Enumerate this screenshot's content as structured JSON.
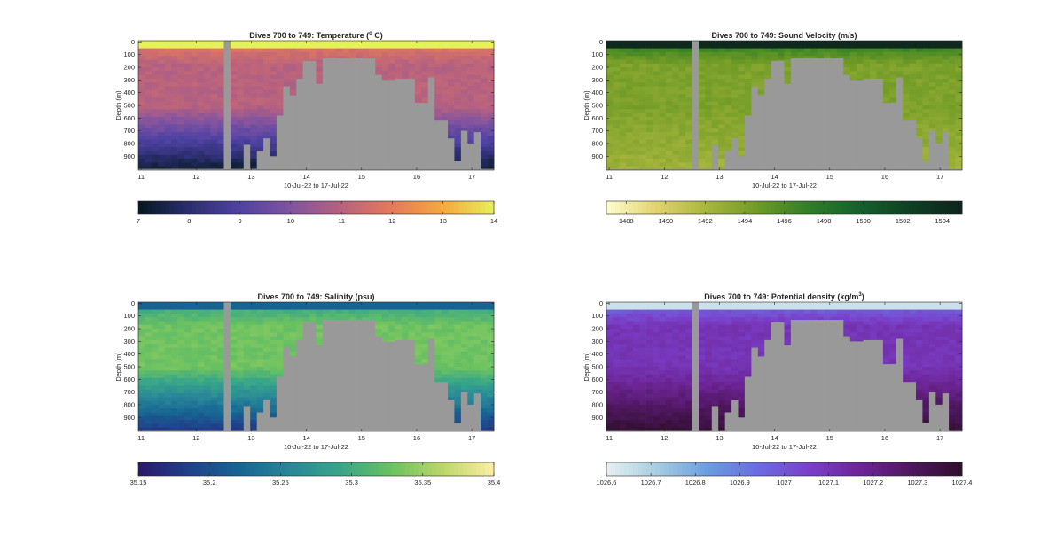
{
  "colors": {
    "gap": "#999999",
    "axis": "#262626",
    "background": "#ffffff"
  },
  "chart_data": [
    {
      "type": "heatmap",
      "title": "Dives 700 to 749: Temperature (",
      "title_sup": "o",
      "title_tail": " C)",
      "xlabel": "10-Jul-22 to 17-Jul-22",
      "ylabel": "Depth (m)",
      "x_ticks": [
        "11",
        "12",
        "13",
        "14",
        "15",
        "16",
        "17"
      ],
      "y_ticks": [
        "0",
        "100",
        "200",
        "300",
        "400",
        "500",
        "600",
        "700",
        "800",
        "900"
      ],
      "colorbar": {
        "ticks": [
          "7",
          "8",
          "9",
          "10",
          "11",
          "12",
          "13",
          "14"
        ],
        "tick_values": [
          7,
          8,
          9,
          10,
          11,
          12,
          13,
          14
        ],
        "range": [
          7,
          14
        ],
        "colormap": "thermal",
        "stops": [
          "#04181e",
          "#2b2e6e",
          "#4f42a3",
          "#8153a0",
          "#b8627e",
          "#e57a5a",
          "#f6a83e",
          "#e6f05a"
        ]
      },
      "field": {
        "surface": 14,
        "deep": 7.3,
        "band": 11
      }
    },
    {
      "type": "heatmap",
      "title": "Dives 700 to 749: Sound Velocity (m/s)",
      "title_sup": "",
      "title_tail": "",
      "xlabel": "10-Jul-22 to 17-Jul-22",
      "ylabel": "Depth (m)",
      "x_ticks": [
        "11",
        "12",
        "13",
        "14",
        "15",
        "16",
        "17"
      ],
      "y_ticks": [
        "0",
        "100",
        "200",
        "300",
        "400",
        "500",
        "600",
        "700",
        "800",
        "900"
      ],
      "colorbar": {
        "ticks": [
          "1488",
          "1490",
          "1492",
          "1494",
          "1496",
          "1498",
          "1500",
          "1502",
          "1504"
        ],
        "tick_values": [
          1488,
          1490,
          1492,
          1494,
          1496,
          1498,
          1500,
          1502,
          1504
        ],
        "range": [
          1487,
          1505
        ],
        "colormap": "speed",
        "stops": [
          "#fffdcd",
          "#e1d26d",
          "#a6b53c",
          "#6d9a25",
          "#2f7d28",
          "#15602c",
          "#0e3f23",
          "#0e241c"
        ]
      },
      "field": {
        "surface": 1504.5,
        "deep": 1492.5,
        "band": 1494
      }
    },
    {
      "type": "heatmap",
      "title": "Dives 700 to 749: Salinity (psu)",
      "title_sup": "",
      "title_tail": "",
      "xlabel": "10-Jul-22 to 17-Jul-22",
      "ylabel": "Depth (m)",
      "x_ticks": [
        "11",
        "12",
        "13",
        "14",
        "15",
        "16",
        "17"
      ],
      "y_ticks": [
        "0",
        "100",
        "200",
        "300",
        "400",
        "500",
        "600",
        "700",
        "800",
        "900"
      ],
      "colorbar": {
        "ticks": [
          "35.15",
          "35.2",
          "35.25",
          "35.3",
          "35.35",
          "35.4"
        ],
        "tick_values": [
          35.15,
          35.2,
          35.25,
          35.3,
          35.35,
          35.4
        ],
        "range": [
          35.15,
          35.4
        ],
        "colormap": "haline",
        "stops": [
          "#29186b",
          "#21418a",
          "#176593",
          "#2a8798",
          "#38a689",
          "#6cc260",
          "#bcd76b",
          "#fdeea2"
        ]
      },
      "field": {
        "surface": 35.22,
        "deep": 35.18,
        "band": 35.33
      }
    },
    {
      "type": "heatmap",
      "title": "Dives 700 to 749: Potential density (kg/m",
      "title_sup": "3",
      "title_tail": ")",
      "xlabel": "10-Jul-22 to 17-Jul-22",
      "ylabel": "Depth (m)",
      "x_ticks": [
        "11",
        "12",
        "13",
        "14",
        "15",
        "16",
        "17"
      ],
      "y_ticks": [
        "0",
        "100",
        "200",
        "300",
        "400",
        "500",
        "600",
        "700",
        "800",
        "900"
      ],
      "colorbar": {
        "ticks": [
          "1026.6",
          "1026.7",
          "1026.8",
          "1026.9",
          "1027",
          "1027.1",
          "1027.2",
          "1027.3",
          "1027.4"
        ],
        "tick_values": [
          1026.6,
          1026.7,
          1026.8,
          1026.9,
          1027.0,
          1027.1,
          1027.2,
          1027.3,
          1027.4
        ],
        "range": [
          1026.6,
          1027.4
        ],
        "colormap": "dense",
        "stops": [
          "#e6f1f1",
          "#a6cde0",
          "#6a9de0",
          "#6b6be0",
          "#7a3fc9",
          "#6d2596",
          "#4f1760",
          "#2f0f2c"
        ]
      },
      "field": {
        "surface": 1026.65,
        "deep": 1027.38,
        "band": 1027.1
      }
    }
  ]
}
